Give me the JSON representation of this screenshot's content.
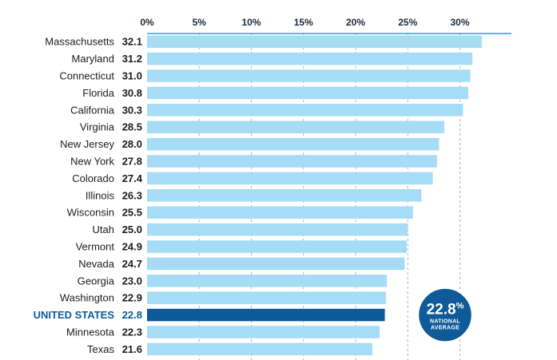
{
  "chart_data": {
    "type": "bar",
    "orientation": "horizontal",
    "categories": [
      "Massachusetts",
      "Maryland",
      "Connecticut",
      "Florida",
      "California",
      "Virginia",
      "New Jersey",
      "New York",
      "Colorado",
      "Illinois",
      "Wisconsin",
      "Utah",
      "Vermont",
      "Nevada",
      "Georgia",
      "Washington",
      "UNITED STATES",
      "Minnesota",
      "Texas"
    ],
    "value_labels": [
      "32.1",
      "31.2",
      "31.0",
      "30.8",
      "30.3",
      "28.5",
      "28.0",
      "27.8",
      "27.4",
      "26.3",
      "25.5",
      "25.0",
      "24.9",
      "24.7",
      "23.0",
      "22.9",
      "22.8",
      "22.3",
      "21.6"
    ],
    "values": [
      32.1,
      31.2,
      31.0,
      30.8,
      30.3,
      28.5,
      28.0,
      27.8,
      27.4,
      26.3,
      25.5,
      25.0,
      24.9,
      24.7,
      23.0,
      22.9,
      22.8,
      22.3,
      21.6
    ],
    "highlight_category": "UNITED STATES",
    "xticks": [
      "0%",
      "5%",
      "10%",
      "15%",
      "20%",
      "25%",
      "30%"
    ],
    "xtick_values": [
      0,
      5,
      10,
      15,
      20,
      25,
      30
    ],
    "xlim": [
      0,
      35
    ],
    "grid": "vertical dashed",
    "colors": {
      "bar": "#a6dcf6",
      "highlight_bar": "#0f5a99",
      "callout": "#0f5a99",
      "axis": "#2b9fd8",
      "grid": "#9fb7cc"
    },
    "callout": {
      "value": "22.8",
      "unit": "%",
      "line1": "NATIONAL",
      "line2": "AVERAGE"
    }
  }
}
